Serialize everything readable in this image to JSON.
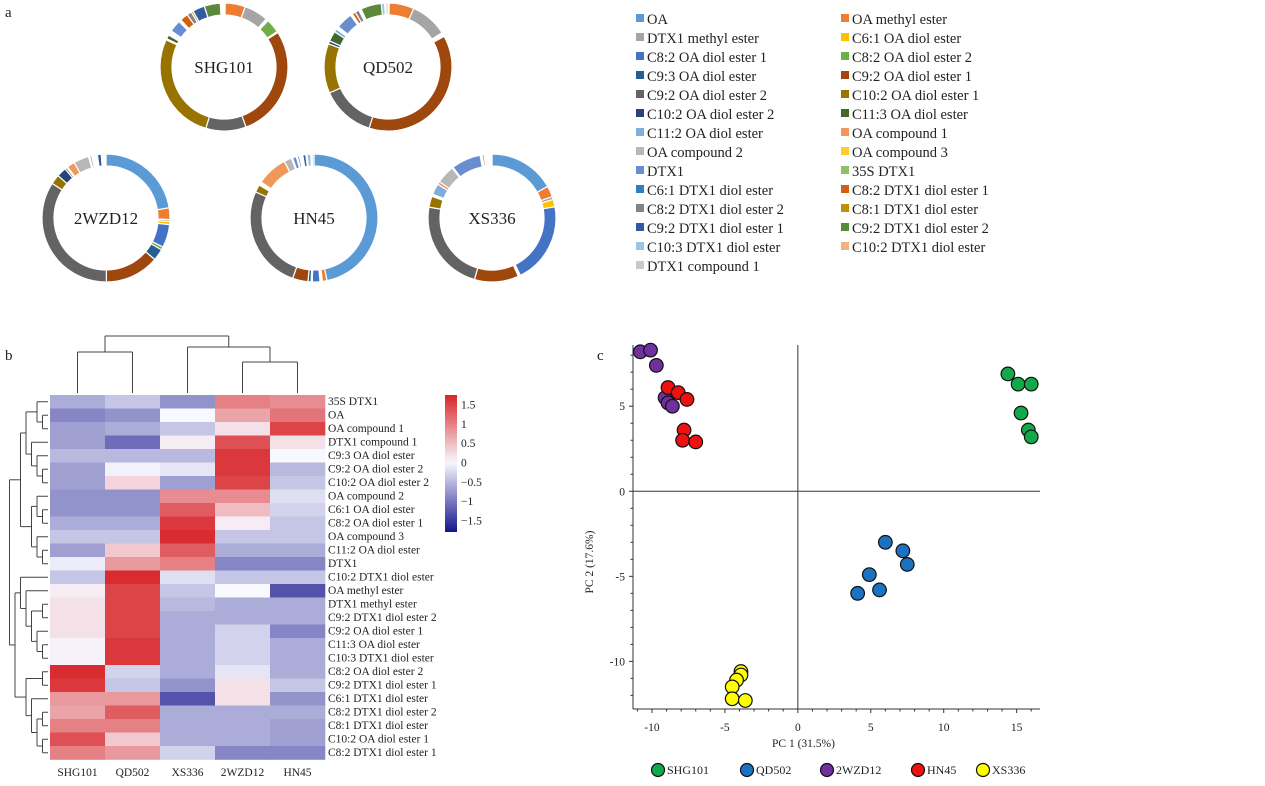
{
  "panel_labels": {
    "a": "a",
    "b": "b",
    "c": "c"
  },
  "chart_data": [
    {
      "type": "pie",
      "variant": "donut",
      "panel": "a",
      "compounds": [
        "OA",
        "OA methyl ester",
        "DTX1 methyl ester",
        "C6:1 OA diol ester",
        "C8:2 OA diol ester 1",
        "C8:2 OA diol ester 2",
        "C9:3 OA diol ester",
        "C9:2 OA diol ester 1",
        "C9:2 OA diol ester 2",
        "C10:2 OA diol ester 1",
        "C10:2 OA diol ester 2",
        "C11:3 OA diol ester",
        "C11:2 OA diol ester",
        "OA compound 1",
        "OA compound 2",
        "OA compound 3",
        "DTX1",
        "35S DTX1",
        "C6:1 DTX1 diol ester",
        "C8:2 DTX1 diol ester 1",
        "C8:2 DTX1 diol ester 2",
        "C8:1 DTX1 diol ester",
        "C9:2 DTX1 diol ester 1",
        "C9:2 DTX1 diol ester 2",
        "C10:3 DTX1 diol ester",
        "C10:2 DTX1 diol ester",
        "DTX1 compound 1"
      ],
      "colors": [
        "#5b9bd5",
        "#ed7d31",
        "#a5a5a5",
        "#ffc000",
        "#4472c4",
        "#70ad47",
        "#255e91",
        "#9e480e",
        "#636363",
        "#997300",
        "#264478",
        "#43682b",
        "#7cafdd",
        "#f1975a",
        "#b7b7b7",
        "#ffcd33",
        "#698ed0",
        "#8cc168",
        "#327dc2",
        "#d26012",
        "#848484",
        "#bf9000",
        "#335aa1",
        "#5a8a39",
        "#9dc3e6",
        "#f4b183",
        "#c9c9c9"
      ],
      "legend_placement": "right",
      "series": [
        {
          "name": "SHG101",
          "values": [
            0.3,
            5,
            6,
            0.3,
            0.3,
            3.5,
            0.3,
            28,
            10,
            27,
            0.3,
            1,
            0.3,
            0.3,
            0.3,
            0.3,
            3,
            0.3,
            0.3,
            2,
            1.2,
            0.5,
            3,
            4,
            0.3,
            0.3,
            0.3
          ]
        },
        {
          "name": "QD502",
          "values": [
            0.3,
            6,
            9,
            0.2,
            0.3,
            0.3,
            0.2,
            36,
            13,
            12,
            0.7,
            2.5,
            0.8,
            0.2,
            0.3,
            0.2,
            4,
            0.2,
            0.3,
            0.8,
            1,
            0.3,
            0.3,
            5,
            0.8,
            0.3,
            0.5
          ]
        },
        {
          "name": "2WZD12",
          "values": [
            23,
            3,
            0.5,
            0.8,
            6,
            0.8,
            3,
            14,
            35,
            2.5,
            2.5,
            0.5,
            0.3,
            2,
            4,
            0.3,
            0.5,
            0.3,
            0.3,
            0.3,
            0.3,
            0.3,
            1,
            0.3,
            0.3,
            0.3,
            0.3
          ]
        },
        {
          "name": "HN45",
          "values": [
            48,
            1.2,
            0.3,
            0.3,
            2,
            0.3,
            0.8,
            4,
            27,
            2,
            0.3,
            0.3,
            0.3,
            8,
            2,
            0.3,
            1,
            0.3,
            0.5,
            0.3,
            0.3,
            0.3,
            0.8,
            0.3,
            1,
            0.3,
            0.5
          ]
        },
        {
          "name": "XS336",
          "values": [
            18,
            3,
            0.8,
            2,
            22,
            0.3,
            0.3,
            12,
            25,
            3,
            0.3,
            0.3,
            3,
            0.8,
            5,
            0.3,
            8,
            0.3,
            0.3,
            0.5,
            0.3,
            0.3,
            0.3,
            0.3,
            0.3,
            0.3,
            0.3
          ]
        }
      ]
    },
    {
      "type": "heatmap",
      "panel": "b",
      "columns": [
        "SHG101",
        "QD502",
        "XS336",
        "2WZD12",
        "HN45"
      ],
      "rows": [
        "35S DTX1",
        "OA",
        "OA compound 1",
        "DTX1 compound 1",
        "C9:3 OA diol ester",
        "C9:2 OA diol ester 2",
        "C10:2 OA diol ester 2",
        "OA compound 2",
        "C6:1 OA diol ester",
        "C8:2 OA diol ester 1",
        "OA compound 3",
        "C11:2 OA diol ester",
        "DTX1",
        "C10:2 DTX1 diol ester",
        "OA methyl ester",
        "DTX1 methyl ester",
        "C9:2 DTX1 diol ester 2",
        "C9:2 OA diol ester 1",
        "C11:3 OA diol ester",
        "C10:3 DTX1 diol ester",
        "C8:2 OA diol ester 2",
        "C9:2 DTX1 diol ester 1",
        "C6:1 DTX1 diol ester",
        "C8:2 DTX1 diol ester 2",
        "C8:1 DTX1 diol ester",
        "C10:2 OA diol ester 1",
        "C8:2 DTX1 diol ester 1"
      ],
      "values": [
        [
          -0.6,
          -0.4,
          -0.8,
          1.0,
          0.9
        ],
        [
          -0.9,
          -0.8,
          0.0,
          0.7,
          1.1
        ],
        [
          -0.7,
          -0.6,
          -0.4,
          0.2,
          1.5
        ],
        [
          -0.7,
          -1.1,
          0.1,
          1.4,
          0.2
        ],
        [
          -0.5,
          -0.5,
          -0.5,
          1.6,
          0.0
        ],
        [
          -0.7,
          -0.05,
          -0.15,
          1.6,
          -0.5
        ],
        [
          -0.7,
          0.3,
          -0.7,
          1.5,
          -0.4
        ],
        [
          -0.8,
          -0.8,
          0.9,
          0.9,
          -0.2
        ],
        [
          -0.8,
          -0.8,
          1.3,
          0.5,
          -0.3
        ],
        [
          -0.6,
          -0.6,
          1.6,
          0.1,
          -0.4
        ],
        [
          -0.4,
          -0.4,
          1.7,
          -0.4,
          -0.4
        ],
        [
          -0.7,
          0.4,
          1.3,
          -0.6,
          -0.6
        ],
        [
          -0.1,
          0.8,
          1.0,
          -0.9,
          -0.9
        ],
        [
          -0.4,
          1.7,
          -0.2,
          -0.4,
          -0.4
        ],
        [
          0.1,
          1.5,
          -0.4,
          0.0,
          -1.3
        ],
        [
          0.2,
          1.5,
          -0.5,
          -0.6,
          -0.6
        ],
        [
          0.2,
          1.5,
          -0.6,
          -0.6,
          -0.6
        ],
        [
          0.2,
          1.5,
          -0.6,
          -0.3,
          -0.9
        ],
        [
          0.05,
          1.6,
          -0.6,
          -0.3,
          -0.6
        ],
        [
          0.05,
          1.6,
          -0.6,
          -0.3,
          -0.6
        ],
        [
          1.7,
          -0.3,
          -0.6,
          -0.15,
          -0.6
        ],
        [
          1.6,
          -0.4,
          -0.8,
          0.2,
          -0.4
        ],
        [
          0.8,
          0.8,
          -1.3,
          0.2,
          -0.8
        ],
        [
          0.7,
          1.3,
          -0.6,
          -0.6,
          -0.6
        ],
        [
          1.0,
          1.0,
          -0.6,
          -0.6,
          -0.7
        ],
        [
          1.4,
          0.4,
          -0.6,
          -0.6,
          -0.7
        ],
        [
          1.0,
          0.8,
          -0.3,
          -0.9,
          -0.9
        ]
      ],
      "colorbar": {
        "ticks": [
          1.5,
          1,
          0.5,
          0,
          -0.5,
          -1,
          -1.5
        ],
        "tick_labels": [
          "1.5",
          "1",
          "0.5",
          "0",
          "−0.5",
          "−1",
          "−1.5"
        ],
        "range": [
          -1.8,
          1.75
        ],
        "low_color": "#14148c",
        "mid_color": "#f8f8ff",
        "high_color": "#d7262a"
      },
      "dendrograms": [
        "rows",
        "columns"
      ]
    },
    {
      "type": "scatter",
      "panel": "c",
      "xlabel": "PC 1 (31.5%)",
      "ylabel": "PC 2 (17.6%)",
      "xlim": [
        -11.3,
        16.6
      ],
      "ylim": [
        -12.8,
        8.6
      ],
      "xticks": [
        -10,
        -5,
        0,
        5,
        10,
        15
      ],
      "yticks": [
        -10,
        -5,
        0,
        5
      ],
      "zero_lines": true,
      "grid": false,
      "legend_placement": "bottom",
      "series": [
        {
          "name": "SHG101",
          "color": "#13a84a",
          "points": [
            [
              14.4,
              6.9
            ],
            [
              15.1,
              6.3
            ],
            [
              16.0,
              6.3
            ],
            [
              15.3,
              4.6
            ],
            [
              15.8,
              3.6
            ],
            [
              16.0,
              3.2
            ]
          ]
        },
        {
          "name": "QD502",
          "color": "#1a72c0",
          "points": [
            [
              6.0,
              -3.0
            ],
            [
              7.2,
              -3.5
            ],
            [
              7.5,
              -4.3
            ],
            [
              4.9,
              -4.9
            ],
            [
              5.6,
              -5.8
            ],
            [
              4.1,
              -6.0
            ]
          ]
        },
        {
          "name": "2WZD12",
          "color": "#7030a0",
          "points": [
            [
              -10.8,
              8.2
            ],
            [
              -10.1,
              8.3
            ],
            [
              -9.7,
              7.4
            ],
            [
              -9.1,
              5.5
            ],
            [
              -8.9,
              5.2
            ],
            [
              -8.6,
              5.0
            ]
          ]
        },
        {
          "name": "HN45",
          "color": "#ee1111",
          "points": [
            [
              -8.9,
              6.1
            ],
            [
              -8.2,
              5.8
            ],
            [
              -7.6,
              5.4
            ],
            [
              -7.8,
              3.6
            ],
            [
              -7.9,
              3.0
            ],
            [
              -7.0,
              2.9
            ]
          ]
        },
        {
          "name": "XS336",
          "color": "#ffff00",
          "points": [
            [
              -3.9,
              -10.6
            ],
            [
              -3.9,
              -10.8
            ],
            [
              -4.2,
              -11.1
            ],
            [
              -4.5,
              -11.5
            ],
            [
              -4.5,
              -12.2
            ],
            [
              -3.6,
              -12.3
            ]
          ]
        }
      ]
    }
  ]
}
